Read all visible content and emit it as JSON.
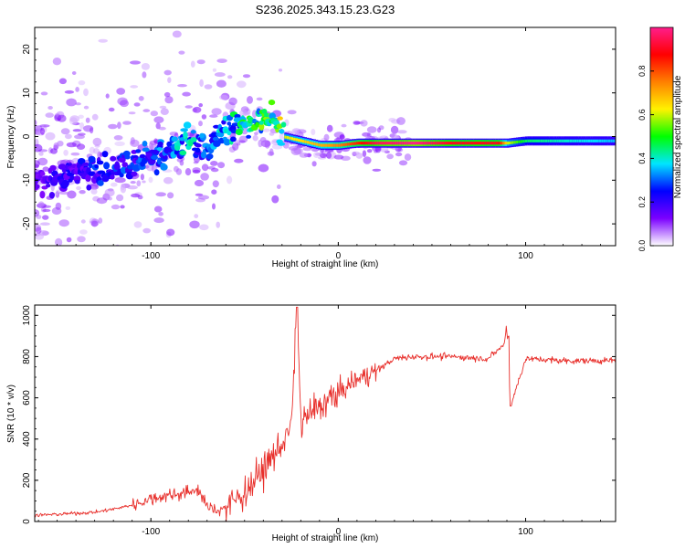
{
  "title": "S236.2025.343.15.23.G23",
  "colors": {
    "series": "#e8302c",
    "axis": "#000000",
    "colormap": [
      "#ffffff",
      "#7b00ff",
      "#0000ff",
      "#00e5ff",
      "#00ff00",
      "#fff200",
      "#ff8000",
      "#ff0000",
      "#ff1e8c"
    ]
  },
  "chart_data": [
    {
      "type": "heatmap",
      "xlabel": "Height of straight line (km)",
      "ylabel": "Frequency (Hz)",
      "xlim": [
        -162,
        148
      ],
      "ylim": [
        -25,
        25
      ],
      "xticks": [
        {
          "value": -100,
          "label": "-100"
        },
        {
          "value": 0,
          "label": "0"
        },
        {
          "value": 100,
          "label": "100"
        }
      ],
      "yticks": [
        {
          "value": -20,
          "label": "-20"
        },
        {
          "value": -10,
          "label": "-10"
        },
        {
          "value": 0,
          "label": "0"
        },
        {
          "value": 10,
          "label": "10"
        },
        {
          "value": 20,
          "label": "20"
        }
      ],
      "colorbar": {
        "label": "Normalized spectral amplitude",
        "range": [
          0,
          1
        ],
        "ticks": [
          {
            "value": 0.0,
            "label": "0.0"
          },
          {
            "value": 0.2,
            "label": "0.2"
          },
          {
            "value": 0.4,
            "label": "0.4"
          },
          {
            "value": 0.6,
            "label": "0.6"
          },
          {
            "value": 0.8,
            "label": "0.8"
          }
        ]
      },
      "ridge": {
        "description": "dominant frequency trace",
        "x": [
          -160,
          -140,
          -120,
          -100,
          -90,
          -80,
          -70,
          -60,
          -50,
          -40,
          -35,
          -30,
          -20,
          -10,
          0,
          10,
          20,
          40,
          60,
          85,
          90,
          100,
          120,
          148
        ],
        "y": [
          -10,
          -8,
          -7,
          -5,
          -3,
          0,
          -3,
          2,
          3,
          4,
          5,
          0,
          -1,
          -2,
          -2,
          -1.5,
          -1.5,
          -1.5,
          -1.5,
          -1.5,
          -1.5,
          -1,
          -1,
          -1
        ],
        "amplitude": [
          0.15,
          0.2,
          0.25,
          0.25,
          0.3,
          0.35,
          0.3,
          0.35,
          0.4,
          0.45,
          0.45,
          0.6,
          0.65,
          0.7,
          0.75,
          0.85,
          0.95,
          1.0,
          0.9,
          0.9,
          0.6,
          0.45,
          0.4,
          0.35
        ]
      }
    },
    {
      "type": "line",
      "xlabel": "Height of straight line (km)",
      "ylabel": "SNR (10 * v/v)",
      "xlim": [
        -162,
        148
      ],
      "ylim": [
        0,
        1050
      ],
      "xticks": [
        {
          "value": -100,
          "label": "-100"
        },
        {
          "value": 0,
          "label": "0"
        },
        {
          "value": 100,
          "label": "100"
        }
      ],
      "yticks": [
        {
          "value": 0,
          "label": "0"
        },
        {
          "value": 200,
          "label": "200"
        },
        {
          "value": 400,
          "label": "400"
        },
        {
          "value": 600,
          "label": "600"
        },
        {
          "value": 800,
          "label": "800"
        },
        {
          "value": 1000,
          "label": "1000"
        }
      ],
      "series": [
        {
          "name": "SNR",
          "x": [
            -162,
            -150,
            -140,
            -130,
            -120,
            -110,
            -100,
            -90,
            -80,
            -75,
            -70,
            -65,
            -60,
            -50,
            -40,
            -30,
            -25,
            -22,
            -20,
            -10,
            0,
            10,
            20,
            30,
            40,
            60,
            80,
            90,
            92,
            100,
            120,
            148
          ],
          "y": [
            30,
            35,
            40,
            45,
            60,
            80,
            110,
            130,
            140,
            160,
            70,
            55,
            70,
            140,
            250,
            380,
            460,
            1040,
            480,
            560,
            620,
            690,
            730,
            790,
            800,
            800,
            790,
            870,
            560,
            790,
            780,
            780
          ]
        }
      ]
    }
  ]
}
